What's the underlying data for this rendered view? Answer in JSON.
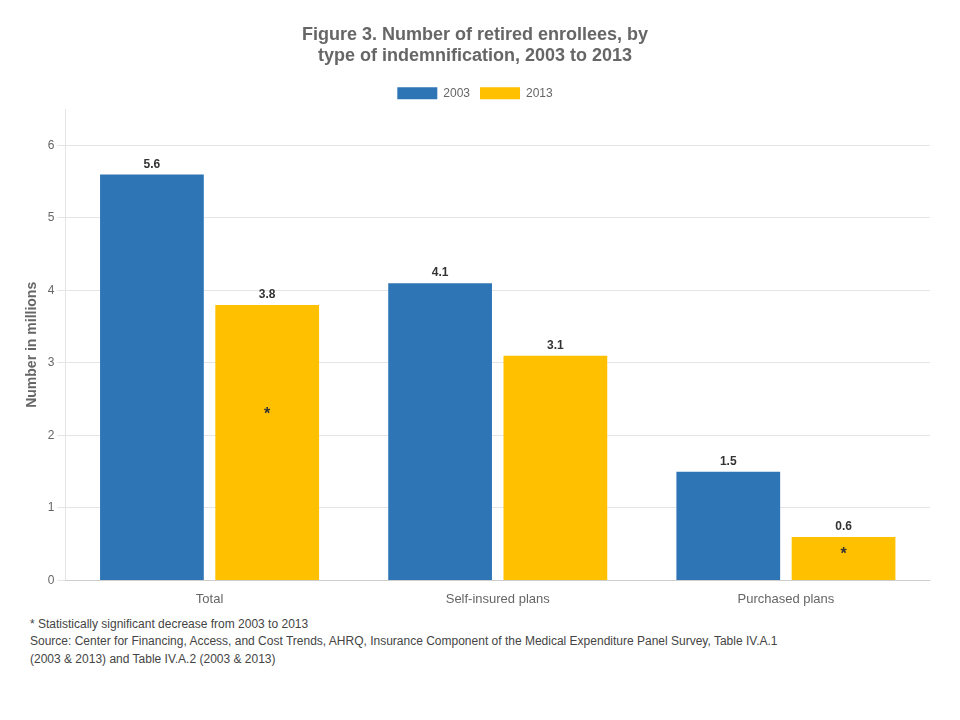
{
  "chart_data": {
    "type": "bar",
    "title": "Figure 3. Number of retired enrollees, by\ntype of indemnification, 2003 to 2013",
    "ylabel": "Number in millions",
    "categories": [
      "Total",
      "Self-insured plans",
      "Purchased plans"
    ],
    "series": [
      {
        "name": "2003",
        "color": "#2e75b6",
        "values": [
          5.6,
          4.1,
          1.5
        ]
      },
      {
        "name": "2013",
        "color": "#ffc000",
        "values": [
          3.8,
          3.1,
          0.6
        ]
      }
    ],
    "ylim": [
      0,
      6.5
    ],
    "yticks": [
      0,
      1,
      2,
      3,
      4,
      5,
      6
    ],
    "grid": true,
    "legend": "top",
    "data_labels": true,
    "annotations": [
      {
        "text": "*",
        "series": "2013",
        "category": "Total"
      },
      {
        "text": "*",
        "series": "2013",
        "category": "Purchased plans"
      }
    ],
    "footnotes": [
      "* Statistically significant decrease from 2003 to 2013",
      "Source: Center for Financing, Access, and Cost Trends, AHRQ, Insurance Component of the Medical Expenditure Panel Survey,  Table IV.A.1",
      "(2003 & 2013) and Table IV.A.2  (2003 & 2013)"
    ]
  }
}
